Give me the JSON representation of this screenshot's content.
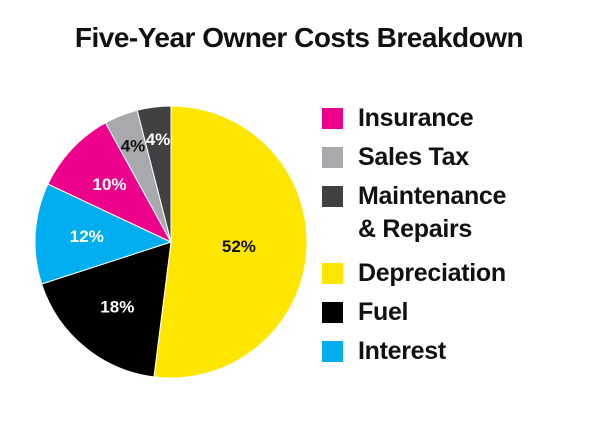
{
  "chart_data": {
    "type": "pie",
    "title": "Five-Year Owner Costs Breakdown",
    "slices": [
      {
        "name": "Depreciation",
        "value": 52,
        "label": "52%",
        "color": "#FFE600",
        "label_color": "#111111"
      },
      {
        "name": "Fuel",
        "value": 18,
        "label": "18%",
        "color": "#000000",
        "label_color": "#FFFFFF"
      },
      {
        "name": "Interest",
        "value": 12,
        "label": "12%",
        "color": "#00AEEF",
        "label_color": "#FFFFFF"
      },
      {
        "name": "Insurance",
        "value": 10,
        "label": "10%",
        "color": "#EC008C",
        "label_color": "#FFFFFF"
      },
      {
        "name": "Sales Tax",
        "value": 4,
        "label": "4%",
        "color": "#A7A9AC",
        "label_color": "#111111"
      },
      {
        "name": "Maintenance & Repairs",
        "value": 4,
        "label": "4%",
        "color": "#414042",
        "label_color": "#FFFFFF"
      }
    ],
    "legend": [
      {
        "label": "Insurance",
        "color": "#EC008C"
      },
      {
        "label": "Sales Tax",
        "color": "#A7A9AC"
      },
      {
        "label": "Maintenance\n& Repairs",
        "color": "#414042"
      },
      {
        "label": "Depreciation",
        "color": "#FFE600"
      },
      {
        "label": "Fuel",
        "color": "#000000"
      },
      {
        "label": "Interest",
        "color": "#00AEEF"
      }
    ],
    "legend_position": "right"
  }
}
